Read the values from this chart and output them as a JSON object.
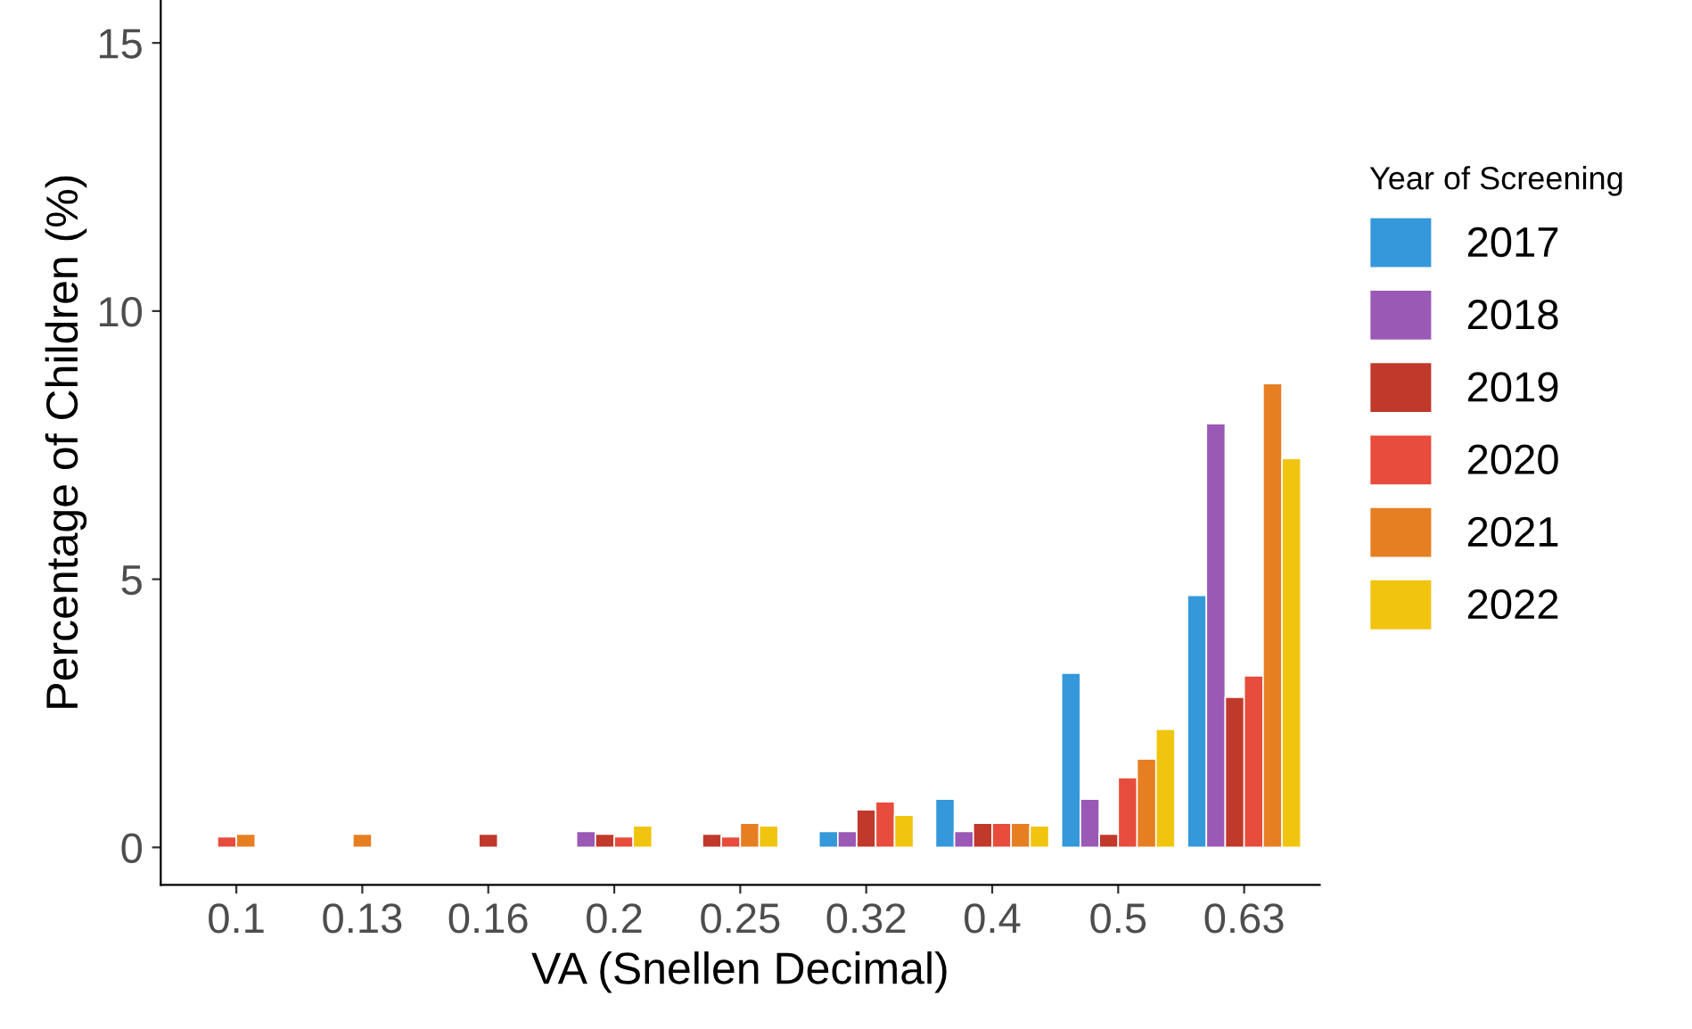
{
  "chart_data": {
    "type": "bar",
    "xlabel": "VA (Snellen Decimal)",
    "ylabel": "Percentage of Children (%)",
    "legend_title": "Year of Screening",
    "categories": [
      "0.1",
      "0.13",
      "0.16",
      "0.2",
      "0.25",
      "0.32",
      "0.4",
      "0.5",
      "0.63"
    ],
    "series": [
      {
        "name": "2017",
        "color": "#3498db",
        "values": [
          null,
          null,
          null,
          null,
          null,
          0.3,
          0.9,
          3.25,
          4.7
        ]
      },
      {
        "name": "2018",
        "color": "#9b59b6",
        "values": [
          null,
          null,
          null,
          0.3,
          null,
          0.3,
          0.3,
          0.9,
          7.9
        ]
      },
      {
        "name": "2019",
        "color": "#c0392b",
        "values": [
          null,
          null,
          0.25,
          0.25,
          0.25,
          0.7,
          0.45,
          0.25,
          2.8
        ]
      },
      {
        "name": "2020",
        "color": "#e74c3c",
        "values": [
          0.2,
          null,
          null,
          0.2,
          0.2,
          0.85,
          0.45,
          1.3,
          3.2
        ]
      },
      {
        "name": "2021",
        "color": "#e67e22",
        "values": [
          0.25,
          0.25,
          null,
          null,
          0.45,
          null,
          0.45,
          1.65,
          8.65
        ]
      },
      {
        "name": "2022",
        "color": "#f1c40f",
        "values": [
          null,
          null,
          null,
          0.4,
          0.4,
          0.6,
          0.4,
          2.2,
          7.25
        ]
      }
    ],
    "ylim": [
      -0.7,
      15.8
    ],
    "yticks": [
      0,
      5,
      10,
      15
    ],
    "grid": false,
    "legend": "right"
  }
}
